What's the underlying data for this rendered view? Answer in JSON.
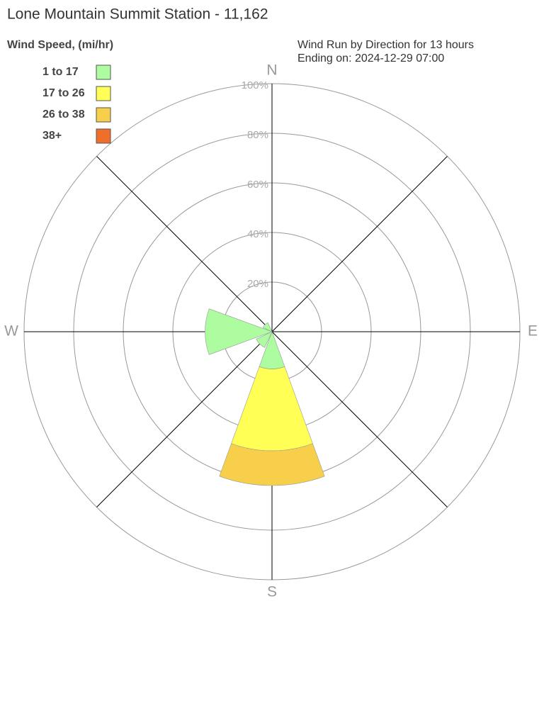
{
  "chart_data": {
    "type": "windrose",
    "title": "Lone Mountain Summit Station - 11,162",
    "legend_title": "Wind Speed, (mi/hr)",
    "subtitle": [
      "Wind Run by Direction for 13 hours",
      "Ending on: 2024-12-29 07:00"
    ],
    "categories": [
      "N",
      null,
      "E",
      null,
      "S",
      null,
      "W",
      null
    ],
    "series": [
      {
        "name": "1 to 17",
        "color": "#adfca0",
        "values": [
          0,
          0,
          0,
          0,
          15,
          7,
          27,
          4
        ]
      },
      {
        "name": "17 to 26",
        "color": "#ffff55",
        "values": [
          0,
          0,
          0,
          0,
          33,
          0,
          0,
          0
        ]
      },
      {
        "name": "26 to 38",
        "color": "#f7cf4a",
        "values": [
          0,
          0,
          0,
          0,
          14,
          0,
          0,
          0
        ]
      },
      {
        "name": "38+",
        "color": "#ee6e2a",
        "values": [
          0,
          0,
          0,
          0,
          0,
          0,
          0,
          0
        ]
      }
    ],
    "rlim": [
      0,
      100
    ],
    "rticks": [
      {
        "value": 20,
        "label": "20%"
      },
      {
        "value": 40,
        "label": "40%"
      },
      {
        "value": 60,
        "label": "60%"
      },
      {
        "value": 80,
        "label": "80%"
      },
      {
        "value": 100,
        "label": "100%"
      }
    ],
    "legend": "upper left"
  }
}
